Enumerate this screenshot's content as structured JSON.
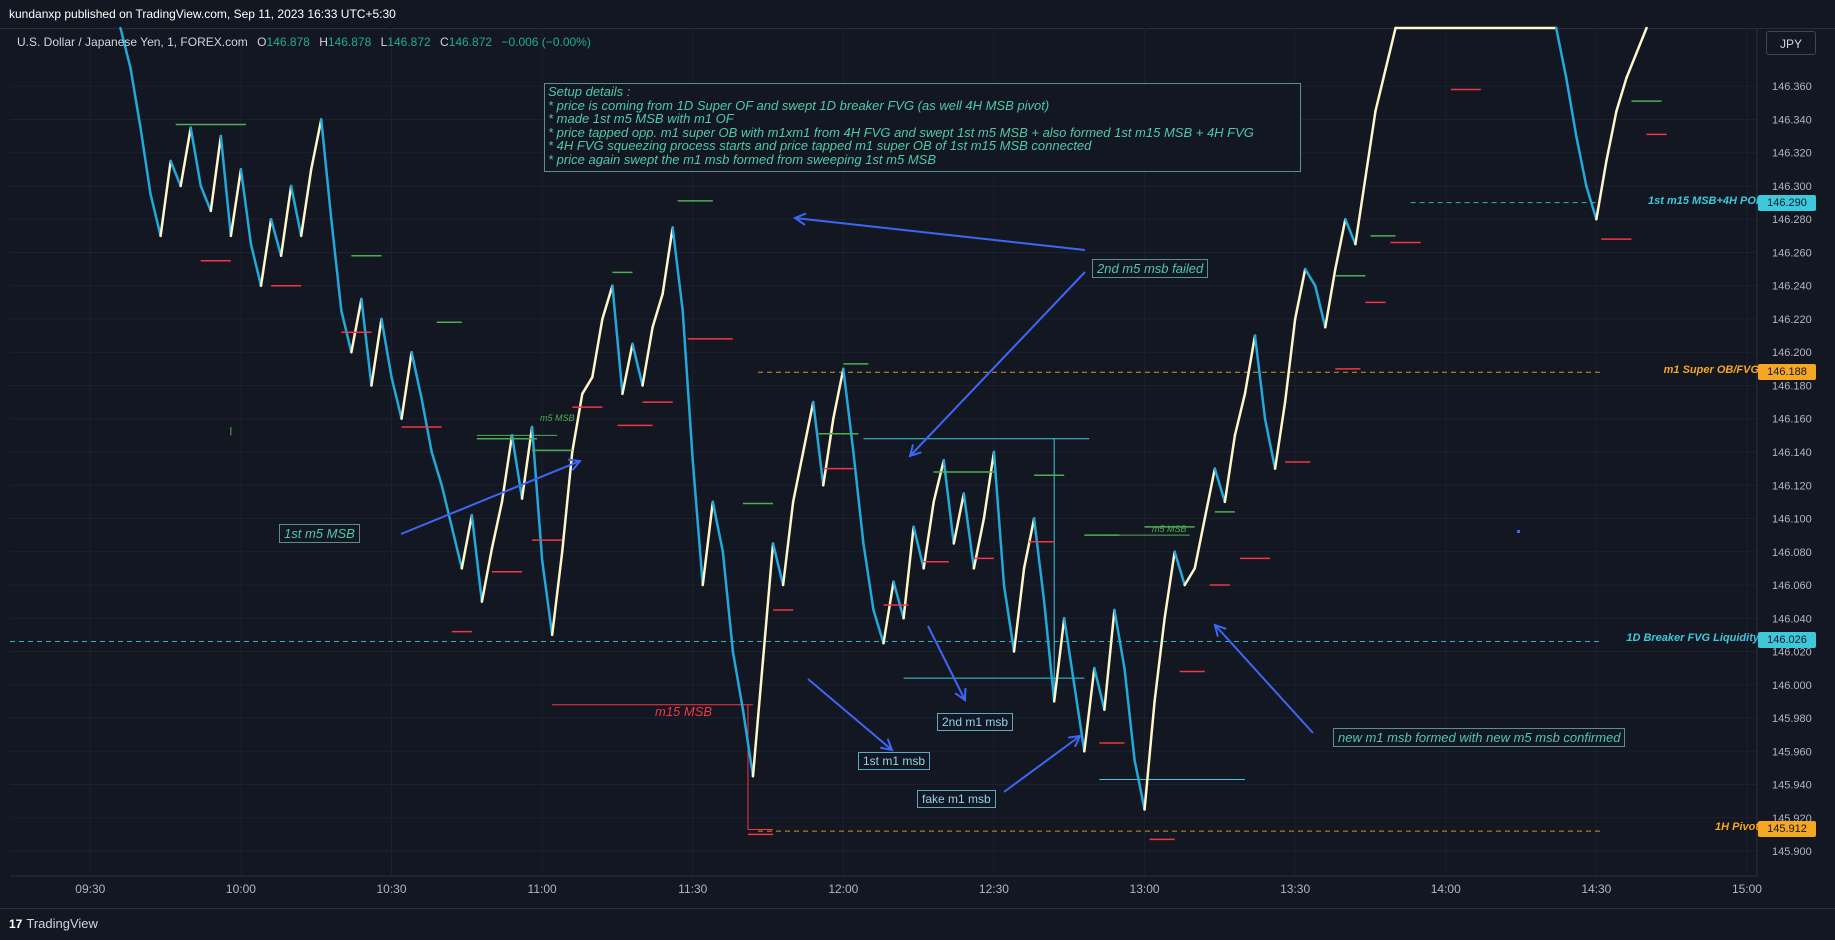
{
  "header": {
    "publisher": "kundanxp published on TradingView.com, Sep 11, 2023 16:33 UTC+5:30",
    "symbol": "U.S. Dollar / Japanese Yen, 1, FOREX.com",
    "ohlc": {
      "O": "146.878",
      "H": "146.878",
      "L": "146.872",
      "C": "146.872",
      "change": "−0.006 (−0.00%)"
    },
    "currency_button": "JPY"
  },
  "footer": {
    "logo": "17",
    "brand": "TradingView"
  },
  "colors": {
    "background": "#131722",
    "up_candle": "#fff6c9",
    "down_candle": "#22a9d9",
    "swing_high": "#4caf50",
    "swing_low": "#f23645",
    "annotation_teal": "#4fc9a8",
    "annotation_blue": "#8fd4ef",
    "arrow_blue": "#3d66f5",
    "level_cyan": "#3ec8dc",
    "level_orange": "#f5a623"
  },
  "setup_box": {
    "lines": [
      "Setup details :",
      "* price is coming from 1D Super OF and swept 1D breaker FVG (as well 4H MSB pivot)",
      "* made 1st m5 MSB with m1 OF",
      "* price tapped opp. m1 super OB with m1xm1 from 4H FVG and swept 1st m5 MSB + also formed 1st m15 MSB + 4H FVG",
      "* 4H FVG squeezing process starts and price tapped m1 super OB of 1st m15 MSB connected",
      "* price again swept the m1 msb formed from sweeping 1st m5 MSB"
    ]
  },
  "annotations": {
    "first_m5_msb": "1st m5 MSB",
    "second_m5_failed": "2nd m5 msb failed",
    "m15_msb": "m15 MSB",
    "first_m1_msb": "1st m1 msb",
    "second_m1_msb": "2nd m1 msb",
    "fake_m1_msb": "fake m1 msb",
    "new_m1_msb": "new m1 msb formed with new m5 msb confirmed",
    "m5_msb_small_1": "m5 MSB",
    "m5_msb_small_2": "m5 MSB"
  },
  "levels": [
    {
      "label": "1st m15 MSB+4H POI",
      "price": "146.290",
      "color": "#3ec8dc",
      "badge_text_color": "#131722"
    },
    {
      "label": "m1 Super OB/FVG",
      "price": "146.188",
      "color": "#f5a623",
      "badge_text_color": "#131722"
    },
    {
      "label": "1D Breaker FVG Liquidity",
      "price": "146.026",
      "color": "#3ec8dc",
      "badge_text_color": "#131722"
    },
    {
      "label": "1H Pivot",
      "price": "145.912",
      "color": "#f5a623",
      "badge_text_color": "#131722"
    }
  ],
  "chart_data": {
    "type": "candlestick",
    "symbol": "USDJPY",
    "interval": "1",
    "ylim": [
      145.885,
      146.395
    ],
    "y_ticks": [
      "146.360",
      "146.340",
      "146.320",
      "146.300",
      "146.280",
      "146.260",
      "146.240",
      "146.220",
      "146.200",
      "146.180",
      "146.160",
      "146.140",
      "146.120",
      "146.100",
      "146.080",
      "146.060",
      "146.040",
      "146.020",
      "146.000",
      "145.980",
      "145.960",
      "145.940",
      "145.920",
      "145.900"
    ],
    "x_ticks": [
      "09:30",
      "10:00",
      "10:30",
      "11:00",
      "11:30",
      "12:00",
      "12:30",
      "13:00",
      "13:30",
      "14:00",
      "14:30",
      "15:00"
    ],
    "x_range": [
      "09:14",
      "15:02"
    ],
    "grid": true,
    "series": [
      {
        "type": "close_path",
        "points": [
          [
            "09:36",
            146.398
          ],
          [
            "09:38",
            146.371
          ],
          [
            "09:40",
            146.335
          ],
          [
            "09:42",
            146.295
          ],
          [
            "09:44",
            146.27
          ],
          [
            "09:46",
            146.315
          ],
          [
            "09:48",
            146.3
          ],
          [
            "09:50",
            146.335
          ],
          [
            "09:52",
            146.3
          ],
          [
            "09:54",
            146.285
          ],
          [
            "09:56",
            146.33
          ],
          [
            "09:58",
            146.27
          ],
          [
            "10:00",
            146.31
          ],
          [
            "10:02",
            146.265
          ],
          [
            "10:04",
            146.24
          ],
          [
            "10:06",
            146.28
          ],
          [
            "10:08",
            146.258
          ],
          [
            "10:10",
            146.3
          ],
          [
            "10:12",
            146.27
          ],
          [
            "10:14",
            146.31
          ],
          [
            "10:16",
            146.34
          ],
          [
            "10:18",
            146.28
          ],
          [
            "10:20",
            146.225
          ],
          [
            "10:22",
            146.2
          ],
          [
            "10:24",
            146.232
          ],
          [
            "10:26",
            146.18
          ],
          [
            "10:28",
            146.22
          ],
          [
            "10:30",
            146.185
          ],
          [
            "10:32",
            146.16
          ],
          [
            "10:34",
            146.2
          ],
          [
            "10:36",
            146.172
          ],
          [
            "10:38",
            146.14
          ],
          [
            "10:40",
            146.12
          ],
          [
            "10:42",
            146.095
          ],
          [
            "10:44",
            146.07
          ],
          [
            "10:46",
            146.102
          ],
          [
            "10:48",
            146.05
          ],
          [
            "10:50",
            146.082
          ],
          [
            "10:52",
            146.11
          ],
          [
            "10:54",
            146.15
          ],
          [
            "10:56",
            146.112
          ],
          [
            "10:58",
            146.155
          ],
          [
            "11:00",
            146.075
          ],
          [
            "11:02",
            146.03
          ],
          [
            "11:04",
            146.08
          ],
          [
            "11:06",
            146.14
          ],
          [
            "11:08",
            146.175
          ],
          [
            "11:10",
            146.185
          ],
          [
            "11:12",
            146.22
          ],
          [
            "11:14",
            146.24
          ],
          [
            "11:16",
            146.175
          ],
          [
            "11:18",
            146.205
          ],
          [
            "11:20",
            146.18
          ],
          [
            "11:22",
            146.215
          ],
          [
            "11:24",
            146.235
          ],
          [
            "11:26",
            146.275
          ],
          [
            "11:28",
            146.225
          ],
          [
            "11:30",
            146.135
          ],
          [
            "11:32",
            146.06
          ],
          [
            "11:34",
            146.11
          ],
          [
            "11:36",
            146.08
          ],
          [
            "11:38",
            146.02
          ],
          [
            "11:40",
            145.985
          ],
          [
            "11:42",
            145.945
          ],
          [
            "11:44",
            146.015
          ],
          [
            "11:46",
            146.085
          ],
          [
            "11:48",
            146.06
          ],
          [
            "11:50",
            146.11
          ],
          [
            "11:52",
            146.14
          ],
          [
            "11:54",
            146.17
          ],
          [
            "11:56",
            146.12
          ],
          [
            "11:58",
            146.16
          ],
          [
            "12:00",
            146.19
          ],
          [
            "12:02",
            146.14
          ],
          [
            "12:04",
            146.085
          ],
          [
            "12:06",
            146.045
          ],
          [
            "12:08",
            146.025
          ],
          [
            "12:10",
            146.062
          ],
          [
            "12:12",
            146.04
          ],
          [
            "12:14",
            146.095
          ],
          [
            "12:16",
            146.07
          ],
          [
            "12:18",
            146.11
          ],
          [
            "12:20",
            146.135
          ],
          [
            "12:22",
            146.085
          ],
          [
            "12:24",
            146.115
          ],
          [
            "12:26",
            146.07
          ],
          [
            "12:28",
            146.1
          ],
          [
            "12:30",
            146.14
          ],
          [
            "12:32",
            146.06
          ],
          [
            "12:34",
            146.02
          ],
          [
            "12:36",
            146.07
          ],
          [
            "12:38",
            146.1
          ],
          [
            "12:40",
            146.05
          ],
          [
            "12:42",
            145.99
          ],
          [
            "12:44",
            146.04
          ],
          [
            "12:46",
            146.0
          ],
          [
            "12:48",
            145.96
          ],
          [
            "12:50",
            146.01
          ],
          [
            "12:52",
            145.985
          ],
          [
            "12:54",
            146.045
          ],
          [
            "12:56",
            146.01
          ],
          [
            "12:58",
            145.955
          ],
          [
            "13:00",
            145.925
          ],
          [
            "13:02",
            145.99
          ],
          [
            "13:04",
            146.04
          ],
          [
            "13:06",
            146.08
          ],
          [
            "13:08",
            146.06
          ],
          [
            "13:10",
            146.07
          ],
          [
            "13:12",
            146.1
          ],
          [
            "13:14",
            146.13
          ],
          [
            "13:16",
            146.11
          ],
          [
            "13:18",
            146.15
          ],
          [
            "13:20",
            146.175
          ],
          [
            "13:22",
            146.21
          ],
          [
            "13:24",
            146.16
          ],
          [
            "13:26",
            146.13
          ],
          [
            "13:28",
            146.17
          ],
          [
            "13:30",
            146.22
          ],
          [
            "13:32",
            146.25
          ],
          [
            "13:34",
            146.24
          ],
          [
            "13:36",
            146.215
          ],
          [
            "13:38",
            146.25
          ],
          [
            "13:40",
            146.28
          ],
          [
            "13:42",
            146.265
          ],
          [
            "13:44",
            146.305
          ],
          [
            "13:46",
            146.345
          ],
          [
            "13:48",
            146.37
          ],
          [
            "13:50",
            146.398
          ],
          [
            "14:22",
            146.398
          ],
          [
            "14:24",
            146.365
          ],
          [
            "14:26",
            146.33
          ],
          [
            "14:28",
            146.3
          ],
          [
            "14:30",
            146.28
          ],
          [
            "14:32",
            146.315
          ],
          [
            "14:34",
            146.345
          ],
          [
            "14:36",
            146.365
          ],
          [
            "14:38",
            146.38
          ],
          [
            "14:40",
            146.398
          ]
        ]
      },
      {
        "type": "swing_highs",
        "points": [
          [
            "09:47",
            146.335,
            146.337,
            "10:01"
          ],
          [
            "10:22",
            146.255,
            146.258,
            "10:28"
          ],
          [
            "10:39",
            146.215,
            146.218,
            "10:44"
          ],
          [
            "10:47",
            146.145,
            146.148,
            "10:59"
          ],
          [
            "10:58",
            146.138,
            146.141,
            "11:06"
          ],
          [
            "11:14",
            146.245,
            146.248,
            "11:18"
          ],
          [
            "11:27",
            146.288,
            146.291,
            "11:34"
          ],
          [
            "11:40",
            146.106,
            146.109,
            "11:46"
          ],
          [
            "11:55",
            146.148,
            146.151,
            "12:03"
          ],
          [
            "12:00",
            146.19,
            146.193,
            "12:05"
          ],
          [
            "12:18",
            146.125,
            146.128,
            "12:30"
          ],
          [
            "12:38",
            146.123,
            146.126,
            "12:44"
          ],
          [
            "12:48",
            146.087,
            146.09,
            "12:55"
          ],
          [
            "13:00",
            146.092,
            146.095,
            "13:10"
          ],
          [
            "13:14",
            146.102,
            146.104,
            "13:18"
          ],
          [
            "13:38",
            146.242,
            146.246,
            "13:44"
          ],
          [
            "13:45",
            146.268,
            146.27,
            "13:50"
          ],
          [
            "14:37",
            146.348,
            146.351,
            "14:43"
          ]
        ]
      },
      {
        "type": "swing_lows",
        "points": [
          [
            "09:52",
            146.258,
            146.255,
            "09:58"
          ],
          [
            "10:06",
            146.243,
            146.24,
            "10:12"
          ],
          [
            "10:20",
            146.215,
            146.212,
            "10:26"
          ],
          [
            "10:32",
            146.158,
            146.155,
            "10:40"
          ],
          [
            "10:42",
            146.035,
            146.032,
            "10:46"
          ],
          [
            "10:50",
            146.071,
            146.068,
            "10:56"
          ],
          [
            "10:58",
            146.09,
            146.087,
            "11:04"
          ],
          [
            "11:06",
            146.17,
            146.167,
            "11:12"
          ],
          [
            "11:15",
            146.158,
            146.156,
            "11:22"
          ],
          [
            "11:20",
            146.172,
            146.17,
            "11:26"
          ],
          [
            "11:29",
            146.21,
            146.208,
            "11:38"
          ],
          [
            "11:41",
            145.913,
            145.91,
            "11:46"
          ],
          [
            "11:46",
            146.048,
            146.045,
            "11:50"
          ],
          [
            "11:56",
            146.132,
            146.13,
            "12:02"
          ],
          [
            "12:08",
            146.05,
            146.048,
            "12:13"
          ],
          [
            "12:16",
            146.076,
            146.074,
            "12:21"
          ],
          [
            "12:26",
            146.078,
            146.076,
            "12:30"
          ],
          [
            "12:37",
            146.088,
            146.086,
            "12:42"
          ],
          [
            "12:51",
            145.968,
            145.965,
            "12:56"
          ],
          [
            "13:01",
            145.91,
            145.907,
            "13:06"
          ],
          [
            "13:07",
            146.01,
            146.008,
            "13:12"
          ],
          [
            "13:13",
            146.063,
            146.06,
            "13:17"
          ],
          [
            "13:19",
            146.078,
            146.076,
            "13:25"
          ],
          [
            "13:28",
            146.136,
            146.134,
            "13:33"
          ],
          [
            "13:38",
            146.192,
            146.19,
            "13:43"
          ],
          [
            "13:44",
            146.232,
            146.23,
            "13:48"
          ],
          [
            "13:49",
            146.268,
            146.266,
            "13:55"
          ],
          [
            "14:01",
            146.36,
            146.358,
            "14:07"
          ],
          [
            "14:31",
            146.27,
            146.268,
            "14:37"
          ],
          [
            "14:40",
            146.333,
            146.331,
            "14:44"
          ]
        ]
      }
    ]
  }
}
